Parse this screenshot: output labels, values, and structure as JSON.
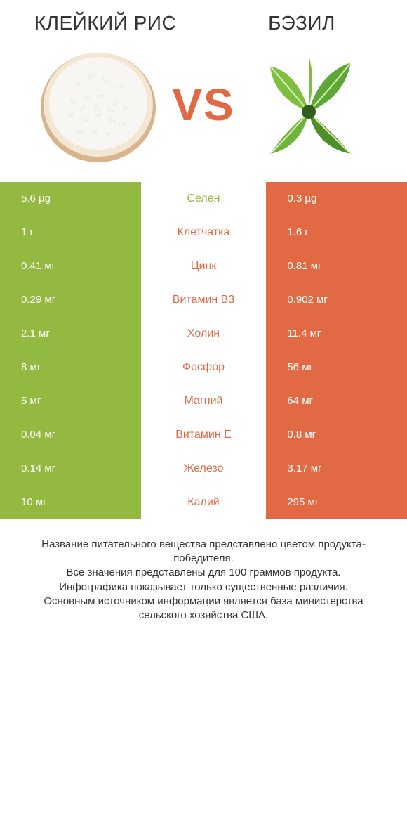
{
  "colors": {
    "left_bg": "#94b941",
    "right_bg": "#e16a45",
    "vs_color": "#e16a45",
    "page_bg": "#ffffff",
    "body_text": "#333333",
    "cell_text": "#ffffff"
  },
  "header": {
    "left_title": "КЛЕЙКИЙ РИС",
    "right_title": "БЭЗИЛ",
    "vs_label": "VS"
  },
  "rows": [
    {
      "left": "5.6 µg",
      "label": "Селен",
      "right": "0.3 µg",
      "winner": "left"
    },
    {
      "left": "1 г",
      "label": "Клетчатка",
      "right": "1.6 г",
      "winner": "right"
    },
    {
      "left": "0.41 мг",
      "label": "Цинк",
      "right": "0.81 мг",
      "winner": "right"
    },
    {
      "left": "0.29 мг",
      "label": "Витамин B3",
      "right": "0.902 мг",
      "winner": "right"
    },
    {
      "left": "2.1 мг",
      "label": "Холин",
      "right": "11.4 мг",
      "winner": "right"
    },
    {
      "left": "8 мг",
      "label": "Фосфор",
      "right": "56 мг",
      "winner": "right"
    },
    {
      "left": "5 мг",
      "label": "Магний",
      "right": "64 мг",
      "winner": "right"
    },
    {
      "left": "0.04 мг",
      "label": "Витамин E",
      "right": "0.8 мг",
      "winner": "right"
    },
    {
      "left": "0.14 мг",
      "label": "Железо",
      "right": "3.17 мг",
      "winner": "right"
    },
    {
      "left": "10 мг",
      "label": "Калий",
      "right": "295 мг",
      "winner": "right"
    }
  ],
  "footer": {
    "line1": "Название питательного вещества представлено цветом продукта-победителя.",
    "line2": "Все значения представлены для 100 граммов продукта.",
    "line3": "Инфографика показывает только существенные различия.",
    "line4": "Основным источником информации является база министерства сельского хозяйства США."
  },
  "images": {
    "left_alt": "rice-bowl-icon",
    "right_alt": "basil-leaves-icon",
    "rice": {
      "bowl_outer": "#d9b38c",
      "bowl_inner": "#f8f6f2",
      "grain": "#f5f3ef",
      "grain_shadow": "#e2ded6"
    },
    "basil": {
      "leaf_light": "#7fbf3f",
      "leaf_dark": "#4f8f2a",
      "vein": "#d9efb8",
      "stem": "#2f5f1a"
    }
  }
}
